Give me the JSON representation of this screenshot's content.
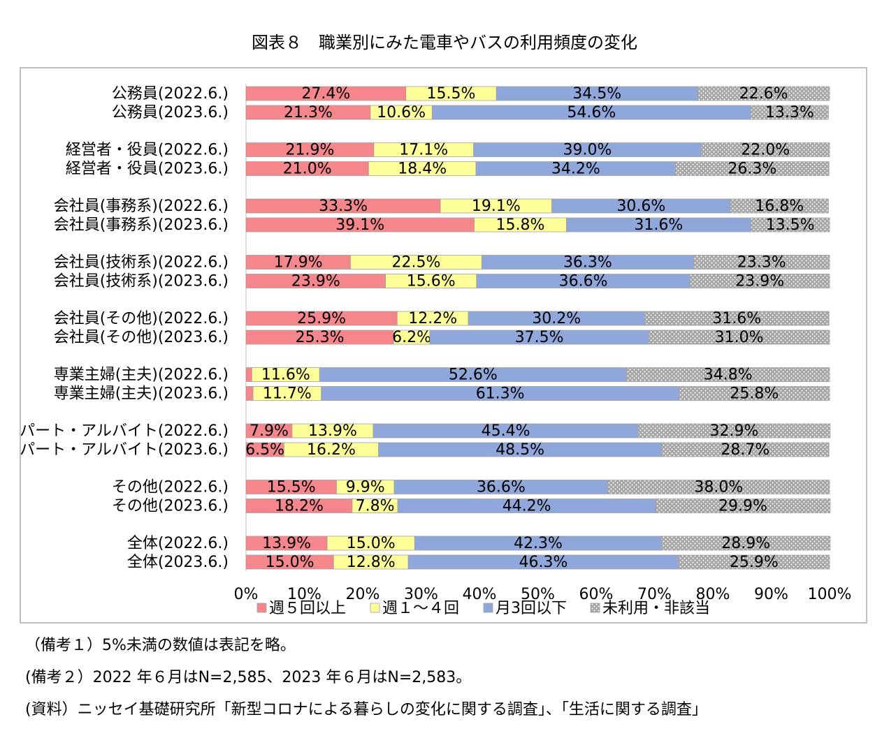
{
  "chart_data": {
    "type": "stacked-barh",
    "title": "図表８　職業別にみた電車やバスの利用頻度の変化",
    "categories": [
      "公務員(2022.6.)",
      "公務員(2023.6.)",
      "経営者・役員(2022.6.)",
      "経営者・役員(2023.6.)",
      "会社員(事務系)(2022.6.)",
      "会社員(事務系)(2023.6.)",
      "会社員(技術系)(2022.6.)",
      "会社員(技術系)(2023.6.)",
      "会社員(その他)(2022.6.)",
      "会社員(その他)(2023.6.)",
      "専業主婦(主夫)(2022.6.)",
      "専業主婦(主夫)(2023.6.)",
      "パート・アルバイト(2022.6.)",
      "パート・アルバイト(2023.6.)",
      "その他(2022.6.)",
      "その他(2023.6.)",
      "全体(2022.6.)",
      "全体(2023.6.)"
    ],
    "series": [
      {
        "name": "週５回以上",
        "color": "#f4868c",
        "values": [
          27.4,
          21.3,
          21.9,
          21.0,
          33.3,
          39.1,
          17.9,
          23.9,
          25.9,
          25.3,
          1.0,
          1.2,
          7.9,
          6.5,
          15.5,
          18.2,
          13.9,
          15.0
        ],
        "value_labels": [
          "27.4%",
          "21.3%",
          "21.9%",
          "21.0%",
          "33.3%",
          "39.1%",
          "17.9%",
          "23.9%",
          "25.9%",
          "25.3%",
          null,
          null,
          "7.9%",
          "6.5%",
          "15.5%",
          "18.2%",
          "13.9%",
          "15.0%"
        ]
      },
      {
        "name": "週１～４回",
        "color": "#ffff99",
        "values": [
          15.5,
          10.6,
          17.1,
          18.4,
          19.1,
          15.8,
          22.5,
          15.6,
          12.2,
          6.2,
          11.6,
          11.7,
          13.9,
          16.2,
          9.9,
          7.8,
          15.0,
          12.8
        ],
        "value_labels": [
          "15.5%",
          "10.6%",
          "17.1%",
          "18.4%",
          "19.1%",
          "15.8%",
          "22.5%",
          "15.6%",
          "12.2%",
          "6.2%",
          "11.6%",
          "11.7%",
          "13.9%",
          "16.2%",
          "9.9%",
          "7.8%",
          "15.0%",
          "12.8%"
        ]
      },
      {
        "name": "月3回以下",
        "color": "#8fa7db",
        "values": [
          34.5,
          54.6,
          39.0,
          34.2,
          30.6,
          31.6,
          36.3,
          36.6,
          30.2,
          37.5,
          52.6,
          61.3,
          45.4,
          48.5,
          36.6,
          44.2,
          42.3,
          46.3
        ],
        "value_labels": [
          "34.5%",
          "54.6%",
          "39.0%",
          "34.2%",
          "30.6%",
          "31.6%",
          "36.3%",
          "36.6%",
          "30.2%",
          "37.5%",
          "52.6%",
          "61.3%",
          "45.4%",
          "48.5%",
          "36.6%",
          "44.2%",
          "42.3%",
          "46.3%"
        ]
      },
      {
        "name": "未利用・非該当",
        "color": "#a6a6a6",
        "pattern": "dots",
        "values": [
          22.6,
          13.3,
          22.0,
          26.3,
          16.8,
          13.5,
          23.3,
          23.9,
          31.6,
          31.0,
          34.8,
          25.8,
          32.9,
          28.7,
          38.0,
          29.9,
          28.9,
          25.9
        ],
        "value_labels": [
          "22.6%",
          "13.3%",
          "22.0%",
          "26.3%",
          "16.8%",
          "13.5%",
          "23.3%",
          "23.9%",
          "31.6%",
          "31.0%",
          "34.8%",
          "25.8%",
          "32.9%",
          "28.7%",
          "38.0%",
          "29.9%",
          "28.9%",
          "25.9%"
        ]
      }
    ],
    "xlim": [
      0,
      100
    ],
    "xticks": [
      {
        "value": 0,
        "label": "0%"
      },
      {
        "value": 10,
        "label": "10%"
      },
      {
        "value": 20,
        "label": "20%"
      },
      {
        "value": 30,
        "label": "30%"
      },
      {
        "value": 40,
        "label": "40%"
      },
      {
        "value": 50,
        "label": "50%"
      },
      {
        "value": 60,
        "label": "60%"
      },
      {
        "value": 70,
        "label": "70%"
      },
      {
        "value": 80,
        "label": "80%"
      },
      {
        "value": 90,
        "label": "90%"
      },
      {
        "value": 100,
        "label": "100%"
      }
    ],
    "legend": "bottom",
    "notes": [
      "（備考１）5%未満の数値は表記を略。",
      "(備考２）2022 年６月はN=2,585、2023 年６月はN=2,583。",
      "(資料）ニッセイ基礎研究所「新型コロナによる暮らしの変化に関する調査」、「生活に関する調査」"
    ]
  }
}
